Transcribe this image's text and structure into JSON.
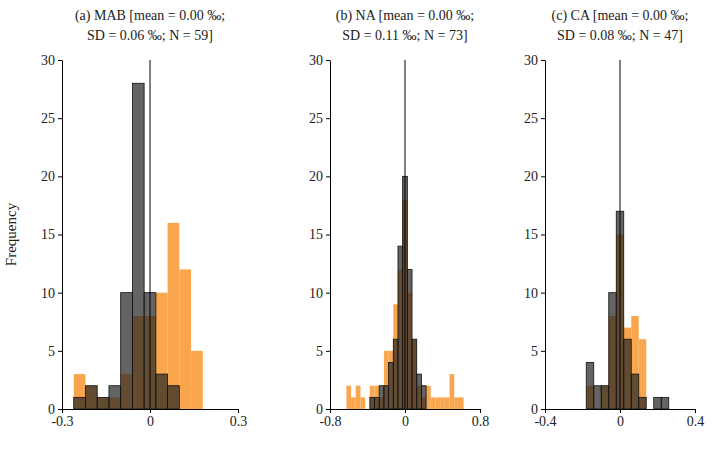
{
  "chart_data": [
    {
      "type": "histogram",
      "title": [
        "(a) MAB [mean = 0.00 ‰;",
        "SD = 0.06 ‰; N = 59]"
      ],
      "ylabel": "Frequency",
      "xlim": [
        -0.3,
        0.3
      ],
      "xticks": [
        -0.3,
        0,
        0.3
      ],
      "ylim": [
        0,
        30
      ],
      "yticks": [
        0,
        5,
        10,
        15,
        20,
        25,
        30
      ],
      "reference_line": 0,
      "bins": [
        -0.26,
        -0.22,
        -0.18,
        -0.14,
        -0.1,
        -0.06,
        -0.02,
        0.02,
        0.06,
        0.1,
        0.14,
        0.18,
        0.22,
        0.26
      ],
      "series": [
        {
          "color": "#f9a64e",
          "values": [
            3,
            2,
            1,
            1,
            3,
            8,
            8,
            10,
            16,
            12,
            5,
            0,
            0
          ]
        },
        {
          "color": "#282828",
          "values": [
            1,
            2,
            1,
            2,
            10,
            28,
            10,
            3,
            2,
            0,
            0,
            0,
            0
          ]
        }
      ]
    },
    {
      "type": "histogram",
      "title": [
        "(b) NA [mean = 0.00 ‰;",
        "SD = 0.11 ‰; N = 73]"
      ],
      "xlim": [
        -0.8,
        0.8
      ],
      "xticks": [
        -0.8,
        0,
        0.8
      ],
      "ylim": [
        0,
        30
      ],
      "yticks": [
        0,
        5,
        10,
        15,
        20,
        25,
        30
      ],
      "reference_line": 0,
      "bins": [
        -0.675,
        -0.625,
        -0.575,
        -0.525,
        -0.475,
        -0.425,
        -0.375,
        -0.325,
        -0.275,
        -0.225,
        -0.175,
        -0.125,
        -0.075,
        -0.025,
        0.025,
        0.075,
        0.125,
        0.175,
        0.225,
        0.275,
        0.325,
        0.375,
        0.425,
        0.475,
        0.525,
        0.575,
        0.625,
        0.675,
        0.725
      ],
      "series": [
        {
          "color": "#f9a64e",
          "values": [
            0,
            2,
            1,
            2,
            1,
            0,
            2,
            2,
            1,
            5,
            5,
            9,
            12,
            18,
            10,
            6,
            2,
            1,
            2,
            1,
            1,
            1,
            1,
            3,
            1,
            1,
            0,
            0
          ]
        },
        {
          "color": "#282828",
          "values": [
            0,
            0,
            0,
            0,
            0,
            0,
            1,
            1,
            2,
            2,
            4,
            6,
            14,
            20,
            12,
            6,
            3,
            2,
            0,
            0,
            0,
            0,
            0,
            0,
            0,
            0,
            0,
            0
          ]
        }
      ]
    },
    {
      "type": "histogram",
      "title": [
        "(c) CA [mean = 0.00 ‰;",
        "SD = 0.08 ‰; N = 47]"
      ],
      "xlim": [
        -0.4,
        0.4
      ],
      "xticks": [
        -0.4,
        0,
        0.4
      ],
      "ylim": [
        0,
        30
      ],
      "yticks": [
        0,
        5,
        10,
        15,
        20,
        25,
        30
      ],
      "reference_line": 0,
      "bins": [
        -0.22,
        -0.18,
        -0.14,
        -0.1,
        -0.06,
        -0.02,
        0.02,
        0.06,
        0.1,
        0.14,
        0.18,
        0.22,
        0.26
      ],
      "series": [
        {
          "color": "#f9a64e",
          "values": [
            0,
            2,
            0,
            2,
            8,
            15,
            7,
            8,
            6,
            0,
            0,
            0
          ]
        },
        {
          "color": "#282828",
          "values": [
            0,
            4,
            2,
            2,
            10,
            17,
            6,
            3,
            1,
            0,
            1,
            1
          ]
        }
      ]
    }
  ]
}
